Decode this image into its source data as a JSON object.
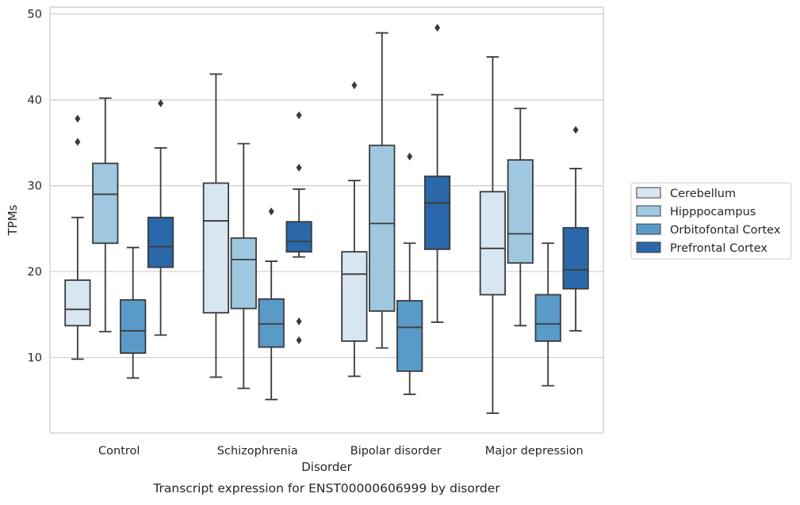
{
  "chart_data": {
    "type": "box",
    "caption": "Transcript expression for ENST00000606999 by disorder",
    "xlabel": "Disorder",
    "ylabel": "TPMs",
    "ylim": [
      1.2,
      50.8
    ],
    "yticks": [
      10,
      20,
      30,
      40,
      50
    ],
    "grid": "horizontal",
    "legend_position": "right",
    "categories": [
      "Control",
      "Schizophrenia",
      "Bipolar disorder",
      "Major depression"
    ],
    "series": [
      {
        "name": "Cerebellum",
        "color": "#d8e6f2",
        "boxes": [
          {
            "whisker_low": 9.8,
            "q1": 13.7,
            "median": 15.6,
            "q3": 19.0,
            "whisker_high": 26.3,
            "outliers": [
              35.1,
              37.8
            ]
          },
          {
            "whisker_low": 7.7,
            "q1": 15.2,
            "median": 25.9,
            "q3": 30.3,
            "whisker_high": 43.0,
            "outliers": []
          },
          {
            "whisker_low": 7.8,
            "q1": 11.9,
            "median": 19.7,
            "q3": 22.3,
            "whisker_high": 30.6,
            "outliers": [
              41.7
            ]
          },
          {
            "whisker_low": 3.5,
            "q1": 17.3,
            "median": 22.7,
            "q3": 29.3,
            "whisker_high": 45.0,
            "outliers": []
          }
        ]
      },
      {
        "name": "Hipppocampus",
        "color": "#9fc8e0",
        "boxes": [
          {
            "whisker_low": 13.0,
            "q1": 23.3,
            "median": 29.0,
            "q3": 32.6,
            "whisker_high": 40.2,
            "outliers": []
          },
          {
            "whisker_low": 6.4,
            "q1": 15.7,
            "median": 21.4,
            "q3": 23.9,
            "whisker_high": 34.9,
            "outliers": []
          },
          {
            "whisker_low": 11.1,
            "q1": 15.4,
            "median": 25.6,
            "q3": 34.7,
            "whisker_high": 47.8,
            "outliers": []
          },
          {
            "whisker_low": 13.7,
            "q1": 21.0,
            "median": 24.4,
            "q3": 33.0,
            "whisker_high": 39.0,
            "outliers": []
          }
        ]
      },
      {
        "name": "Orbitofontal Cortex",
        "color": "#5a9ac8",
        "boxes": [
          {
            "whisker_low": 7.6,
            "q1": 10.5,
            "median": 13.1,
            "q3": 16.7,
            "whisker_high": 22.8,
            "outliers": []
          },
          {
            "whisker_low": 5.1,
            "q1": 11.2,
            "median": 13.9,
            "q3": 16.8,
            "whisker_high": 21.2,
            "outliers": [
              27.0
            ]
          },
          {
            "whisker_low": 5.7,
            "q1": 8.4,
            "median": 13.5,
            "q3": 16.6,
            "whisker_high": 23.3,
            "outliers": [
              33.4
            ]
          },
          {
            "whisker_low": 6.7,
            "q1": 11.9,
            "median": 13.9,
            "q3": 17.3,
            "whisker_high": 23.3,
            "outliers": []
          }
        ]
      },
      {
        "name": "Prefrontal Cortex",
        "color": "#2a68a9",
        "boxes": [
          {
            "whisker_low": 12.6,
            "q1": 20.5,
            "median": 22.9,
            "q3": 26.3,
            "whisker_high": 34.4,
            "outliers": [
              39.6
            ]
          },
          {
            "whisker_low": 21.7,
            "q1": 22.3,
            "median": 23.5,
            "q3": 25.8,
            "whisker_high": 29.6,
            "outliers": [
              12.0,
              14.2,
              32.1,
              38.2
            ]
          },
          {
            "whisker_low": 14.1,
            "q1": 22.6,
            "median": 28.0,
            "q3": 31.1,
            "whisker_high": 40.6,
            "outliers": [
              48.4
            ]
          },
          {
            "whisker_low": 13.1,
            "q1": 18.0,
            "median": 20.2,
            "q3": 25.1,
            "whisker_high": 32.0,
            "outliers": [
              36.5
            ]
          }
        ]
      }
    ]
  }
}
